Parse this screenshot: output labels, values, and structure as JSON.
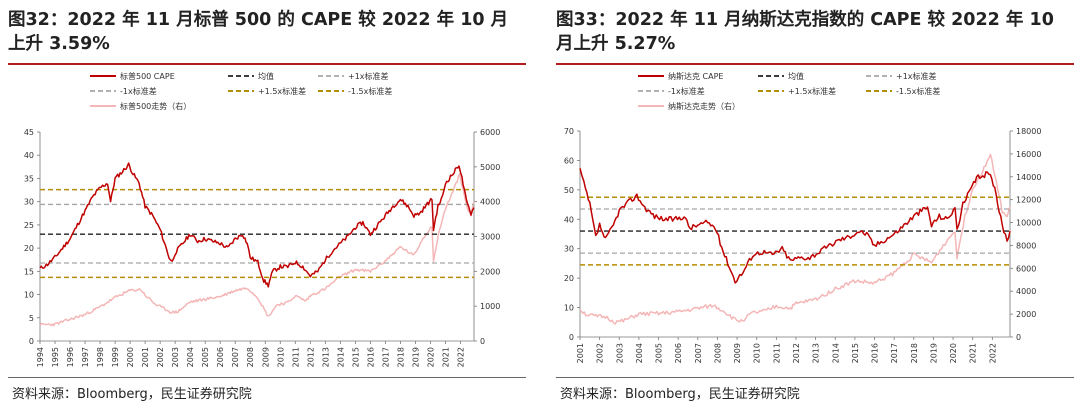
{
  "panels": [
    {
      "title": "图32：2022 年 11 月标普 500 的 CAPE 较 2022 年 10 月上升 3.59%",
      "source": "资料来源：Bloomberg，民生证券研究院",
      "colors": {
        "series": "#c00000",
        "mean": "#222222",
        "sd1": "#a6a6a6",
        "sd15": "#b38f00",
        "index": "#f4b6b6"
      },
      "chart_data": {
        "type": "line",
        "legend": [
          "标普500 CAPE",
          "均值",
          "+1x标准差",
          "-1x标准差",
          "+1.5x标准差",
          "-1.5x标准差",
          "标普500走势（右）"
        ],
        "x_labels": [
          "1994",
          "1995",
          "1996",
          "1997",
          "1998",
          "1999",
          "2000",
          "2001",
          "2002",
          "2003",
          "2004",
          "2005",
          "2006",
          "2007",
          "2008",
          "2009",
          "2010",
          "2011",
          "2012",
          "2013",
          "2014",
          "2015",
          "2016",
          "2017",
          "2018",
          "2019",
          "2020",
          "2021",
          "2022"
        ],
        "xlim": [
          1994,
          2022.9
        ],
        "y_left": {
          "ticks": [
            "0",
            "5",
            "10",
            "15",
            "20",
            "25",
            "30",
            "35",
            "40",
            "45"
          ],
          "lim": [
            0,
            45
          ]
        },
        "y_right": {
          "ticks": [
            "0",
            "1000",
            "2000",
            "3000",
            "4000",
            "5000",
            "6000"
          ],
          "lim": [
            0,
            6000
          ]
        },
        "reference_lines": {
          "mean": 23.0,
          "plus1sd": 29.4,
          "minus1sd": 16.8,
          "plus15sd": 32.6,
          "minus15sd": 13.7
        },
        "cape": [
          [
            1994,
            15.6
          ],
          [
            1994.5,
            16.5
          ],
          [
            1995,
            18
          ],
          [
            1995.5,
            20
          ],
          [
            1996,
            22
          ],
          [
            1996.5,
            25
          ],
          [
            1997,
            28
          ],
          [
            1997.5,
            31
          ],
          [
            1998,
            33
          ],
          [
            1998.5,
            34
          ],
          [
            1998.7,
            30
          ],
          [
            1999,
            35
          ],
          [
            1999.5,
            36.5
          ],
          [
            1999.9,
            38
          ],
          [
            2000.2,
            36
          ],
          [
            2000.6,
            34
          ],
          [
            2001,
            29
          ],
          [
            2001.5,
            27
          ],
          [
            2002,
            24
          ],
          [
            2002.6,
            18
          ],
          [
            2002.8,
            17
          ],
          [
            2003,
            19
          ],
          [
            2003.5,
            21
          ],
          [
            2004,
            23
          ],
          [
            2004.5,
            21.5
          ],
          [
            2005,
            22
          ],
          [
            2005.5,
            21.5
          ],
          [
            2006,
            21
          ],
          [
            2006.5,
            20
          ],
          [
            2007,
            22
          ],
          [
            2007.5,
            23
          ],
          [
            2007.8,
            21
          ],
          [
            2008,
            18
          ],
          [
            2008.5,
            17
          ],
          [
            2008.9,
            13
          ],
          [
            2009.2,
            12
          ],
          [
            2009.5,
            15
          ],
          [
            2010,
            16
          ],
          [
            2010.5,
            16
          ],
          [
            2011,
            17
          ],
          [
            2011.5,
            16
          ],
          [
            2012,
            14
          ],
          [
            2012.5,
            15
          ],
          [
            2013,
            17.5
          ],
          [
            2013.5,
            19.5
          ],
          [
            2014,
            21
          ],
          [
            2014.5,
            22.5
          ],
          [
            2015,
            24.5
          ],
          [
            2015.5,
            25.5
          ],
          [
            2016,
            23
          ],
          [
            2016.5,
            25
          ],
          [
            2017,
            27
          ],
          [
            2017.5,
            29
          ],
          [
            2018,
            30.5
          ],
          [
            2018.5,
            29
          ],
          [
            2018.9,
            27
          ],
          [
            2019.3,
            27.5
          ],
          [
            2019.8,
            29.5
          ],
          [
            2020.1,
            30.5
          ],
          [
            2020.2,
            24
          ],
          [
            2020.5,
            29
          ],
          [
            2020.8,
            31
          ],
          [
            2021,
            34
          ],
          [
            2021.5,
            36
          ],
          [
            2021.9,
            38
          ],
          [
            2022.1,
            35
          ],
          [
            2022.4,
            30
          ],
          [
            2022.7,
            27.5
          ],
          [
            2022.9,
            28.7
          ]
        ],
        "index": [
          [
            1994,
            465
          ],
          [
            1995,
            480
          ],
          [
            1996,
            620
          ],
          [
            1997,
            760
          ],
          [
            1998,
            980
          ],
          [
            1999,
            1250
          ],
          [
            2000,
            1450
          ],
          [
            2000.7,
            1480
          ],
          [
            2001,
            1320
          ],
          [
            2001.7,
            1050
          ],
          [
            2002.5,
            880
          ],
          [
            2002.8,
            810
          ],
          [
            2003.2,
            850
          ],
          [
            2004,
            1120
          ],
          [
            2005,
            1200
          ],
          [
            2006,
            1280
          ],
          [
            2007,
            1450
          ],
          [
            2007.8,
            1530
          ],
          [
            2008.5,
            1250
          ],
          [
            2009.2,
            700
          ],
          [
            2009.8,
            1050
          ],
          [
            2010.5,
            1100
          ],
          [
            2011,
            1300
          ],
          [
            2011.7,
            1150
          ],
          [
            2012,
            1300
          ],
          [
            2013,
            1500
          ],
          [
            2014,
            1850
          ],
          [
            2015,
            2050
          ],
          [
            2016,
            2000
          ],
          [
            2017,
            2300
          ],
          [
            2018,
            2700
          ],
          [
            2018.9,
            2450
          ],
          [
            2019.5,
            2950
          ],
          [
            2020.1,
            3300
          ],
          [
            2020.2,
            2300
          ],
          [
            2020.6,
            3200
          ],
          [
            2021,
            3800
          ],
          [
            2021.5,
            4300
          ],
          [
            2021.95,
            4780
          ],
          [
            2022.4,
            3900
          ],
          [
            2022.7,
            3600
          ],
          [
            2022.9,
            4000
          ]
        ]
      }
    },
    {
      "title": "图33：2022 年 11 月纳斯达克指数的 CAPE 较 2022 年 10 月上升 5.27%",
      "source": "资料来源：Bloomberg，民生证券研究院",
      "colors": {
        "series": "#c00000",
        "mean": "#222222",
        "sd1": "#a6a6a6",
        "sd15": "#b38f00",
        "index": "#f4b6b6"
      },
      "chart_data": {
        "type": "line",
        "legend": [
          "纳斯达克 CAPE",
          "均值",
          "+1x标准差",
          "-1x标准差",
          "+1.5x标准差",
          "-1.5x标准差",
          "纳斯达克走势（右）"
        ],
        "x_labels": [
          "2001",
          "2002",
          "2003",
          "2004",
          "2005",
          "2006",
          "2007",
          "2008",
          "2009",
          "2010",
          "2011",
          "2012",
          "2013",
          "2014",
          "2015",
          "2016",
          "2017",
          "2018",
          "2019",
          "2020",
          "2021",
          "2022"
        ],
        "xlim": [
          2001,
          2022.9
        ],
        "y_left": {
          "ticks": [
            "0",
            "10",
            "20",
            "30",
            "40",
            "50",
            "60",
            "70"
          ],
          "lim": [
            0,
            70
          ]
        },
        "y_right": {
          "ticks": [
            "0",
            "2000",
            "4000",
            "6000",
            "8000",
            "10000",
            "12000",
            "14000",
            "16000",
            "18000"
          ],
          "lim": [
            0,
            18000
          ]
        },
        "reference_lines": {
          "mean": 36.0,
          "plus1sd": 43.5,
          "minus1sd": 28.5,
          "plus15sd": 47.5,
          "minus15sd": 24.5
        },
        "cape": [
          [
            2001,
            57
          ],
          [
            2001.2,
            52
          ],
          [
            2001.5,
            45
          ],
          [
            2001.8,
            34
          ],
          [
            2002,
            38
          ],
          [
            2002.3,
            33
          ],
          [
            2002.7,
            38
          ],
          [
            2003,
            43
          ],
          [
            2003.5,
            46
          ],
          [
            2003.9,
            48
          ],
          [
            2004.3,
            44
          ],
          [
            2004.8,
            41
          ],
          [
            2005.3,
            40
          ],
          [
            2005.8,
            40
          ],
          [
            2006.3,
            41
          ],
          [
            2006.6,
            37
          ],
          [
            2007,
            38
          ],
          [
            2007.5,
            39
          ],
          [
            2007.9,
            37
          ],
          [
            2008.3,
            29
          ],
          [
            2008.6,
            24
          ],
          [
            2008.9,
            19
          ],
          [
            2009.3,
            22
          ],
          [
            2009.8,
            28
          ],
          [
            2010.3,
            29
          ],
          [
            2010.8,
            28
          ],
          [
            2011.3,
            30
          ],
          [
            2011.7,
            26
          ],
          [
            2012.2,
            27
          ],
          [
            2012.7,
            27
          ],
          [
            2013.2,
            29
          ],
          [
            2013.7,
            31
          ],
          [
            2014.2,
            33
          ],
          [
            2014.7,
            34
          ],
          [
            2015.2,
            36
          ],
          [
            2015.6,
            35
          ],
          [
            2016,
            31
          ],
          [
            2016.5,
            33
          ],
          [
            2017,
            35
          ],
          [
            2017.5,
            38
          ],
          [
            2018,
            41
          ],
          [
            2018.4,
            43
          ],
          [
            2018.7,
            44
          ],
          [
            2018.9,
            38
          ],
          [
            2019.3,
            41
          ],
          [
            2019.7,
            40
          ],
          [
            2020.1,
            44
          ],
          [
            2020.2,
            36
          ],
          [
            2020.5,
            45
          ],
          [
            2020.9,
            50
          ],
          [
            2021.2,
            54
          ],
          [
            2021.6,
            55
          ],
          [
            2021.9,
            56
          ],
          [
            2022.2,
            48
          ],
          [
            2022.5,
            38
          ],
          [
            2022.75,
            33
          ],
          [
            2022.9,
            36
          ]
        ],
        "index": [
          [
            2001,
            2400
          ],
          [
            2001.3,
            2000
          ],
          [
            2001.8,
            1800
          ],
          [
            2002.3,
            1750
          ],
          [
            2002.8,
            1300
          ],
          [
            2003.2,
            1400
          ],
          [
            2004,
            2000
          ],
          [
            2005,
            2050
          ],
          [
            2006,
            2200
          ],
          [
            2007,
            2500
          ],
          [
            2007.8,
            2750
          ],
          [
            2008.3,
            2300
          ],
          [
            2008.9,
            1500
          ],
          [
            2009.2,
            1400
          ],
          [
            2009.8,
            2100
          ],
          [
            2010.5,
            2300
          ],
          [
            2011,
            2700
          ],
          [
            2011.7,
            2500
          ],
          [
            2012,
            2900
          ],
          [
            2013,
            3300
          ],
          [
            2014,
            4200
          ],
          [
            2015,
            4900
          ],
          [
            2016,
            4700
          ],
          [
            2017,
            5600
          ],
          [
            2018,
            7200
          ],
          [
            2018.9,
            6500
          ],
          [
            2019.5,
            8000
          ],
          [
            2020.1,
            9300
          ],
          [
            2020.2,
            7000
          ],
          [
            2020.6,
            10500
          ],
          [
            2021,
            13000
          ],
          [
            2021.5,
            14500
          ],
          [
            2021.9,
            16000
          ],
          [
            2022.2,
            13500
          ],
          [
            2022.5,
            11000
          ],
          [
            2022.75,
            10500
          ],
          [
            2022.9,
            11400
          ]
        ]
      }
    }
  ]
}
